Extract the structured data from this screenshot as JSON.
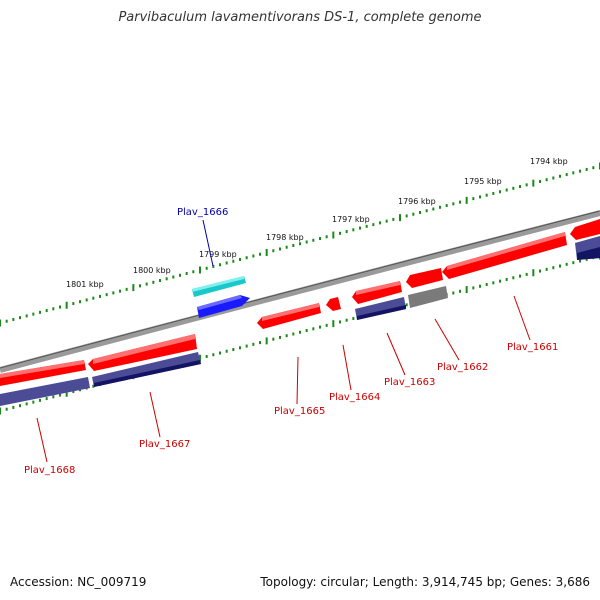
{
  "title": "Parvibaculum lavamentivorans DS-1, complete genome",
  "footer": {
    "accession": "Accession: NC_009719",
    "summary": "Topology: circular; Length: 3,914,745 bp; Genes: 3,686"
  },
  "colors": {
    "backbone": "#808080",
    "tick_dots": "#1a8a1a",
    "gene_red": "#ff0000",
    "gene_cyan": "#19c8c8",
    "gene_blue": "#1a1aff",
    "gene_purple": "#4b4b96",
    "gene_navy": "#141464",
    "gene_gray": "#7a7a7a",
    "label_red": "#cc0000",
    "label_blue": "#0000aa"
  },
  "position_ticks": [
    {
      "label": "1801 kbp"
    },
    {
      "label": "1800 kbp"
    },
    {
      "label": "1799 kbp"
    },
    {
      "label": "1798 kbp"
    },
    {
      "label": "1797 kbp"
    },
    {
      "label": "1796 kbp"
    },
    {
      "label": "1795 kbp"
    },
    {
      "label": "1794 kbp"
    }
  ],
  "gene_labels": [
    {
      "name": "Plav_1666",
      "color": "blue"
    },
    {
      "name": "Plav_1668",
      "color": "red"
    },
    {
      "name": "Plav_1667",
      "color": "red"
    },
    {
      "name": "Plav_1665",
      "color": "red"
    },
    {
      "name": "Plav_1664",
      "color": "red"
    },
    {
      "name": "Plav_1663",
      "color": "red"
    },
    {
      "name": "Plav_1662",
      "color": "red"
    },
    {
      "name": "Plav_1661",
      "color": "red"
    }
  ]
}
